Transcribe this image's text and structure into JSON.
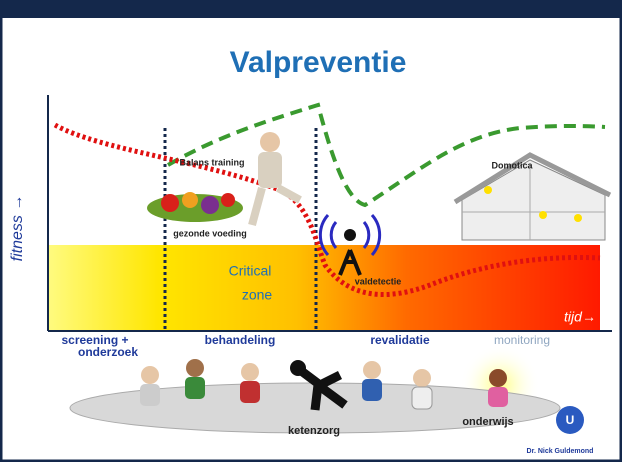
{
  "header": {
    "title": "Valpreventie"
  },
  "axes": {
    "y_label": "fitness →",
    "x_label": "tijd→"
  },
  "annotations": {
    "balance": "Balans training",
    "food": "gezonde voeding",
    "critical_zone": [
      "Critical",
      "zone"
    ],
    "detection": "valdetectie",
    "home": "Domotica"
  },
  "phases": [
    [
      "screening +",
      "onderzoek"
    ],
    [
      "behandeling"
    ],
    [
      "revalidatie"
    ],
    [
      "monitoring"
    ]
  ],
  "bottom": {
    "chain": "ketenzorg",
    "education": "onderwijs"
  },
  "credit": "Dr. Nick Guldemond"
}
